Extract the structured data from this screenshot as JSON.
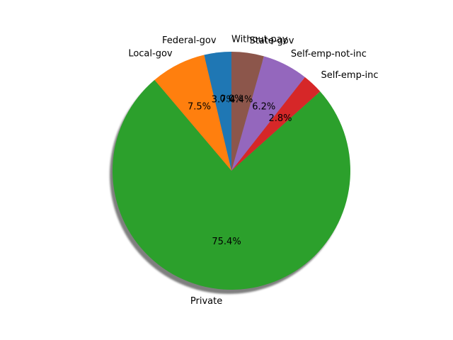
{
  "chart_data": {
    "type": "pie",
    "title": "",
    "start_angle_deg": 90,
    "direction": "counterclockwise",
    "shadow": true,
    "slices": [
      {
        "label": "Federal-gov",
        "value": 3.7,
        "pct_label": "3.7%",
        "color": "#1f77b4"
      },
      {
        "label": "Local-gov",
        "value": 7.5,
        "pct_label": "7.5%",
        "color": "#ff7f0e"
      },
      {
        "label": "Private",
        "value": 75.4,
        "pct_label": "75.4%",
        "color": "#2ca02c"
      },
      {
        "label": "Self-emp-inc",
        "value": 2.8,
        "pct_label": "2.8%",
        "color": "#d62728"
      },
      {
        "label": "Self-emp-not-inc",
        "value": 6.2,
        "pct_label": "6.2%",
        "color": "#9467bd"
      },
      {
        "label": "State-gov",
        "value": 4.4,
        "pct_label": "4.4%",
        "color": "#8c564b"
      },
      {
        "label": "Without-pay",
        "value": 0.0,
        "pct_label": "0.0%",
        "color": "#e377c2"
      }
    ]
  }
}
